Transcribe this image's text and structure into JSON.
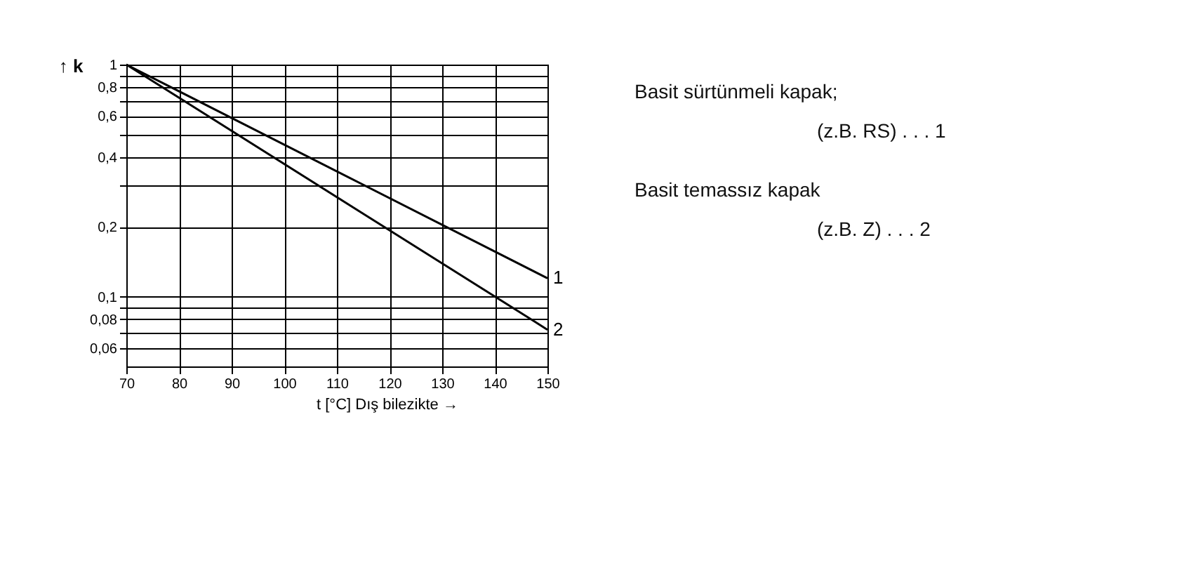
{
  "chart_data": {
    "type": "line",
    "x": [
      70,
      150
    ],
    "series": [
      {
        "name": "1",
        "color": "#000000",
        "values": [
          1,
          0.12
        ]
      },
      {
        "name": "2",
        "color": "#000000",
        "values": [
          1,
          0.072
        ]
      }
    ],
    "xlim": [
      70,
      150
    ],
    "xticks": [
      70,
      80,
      90,
      100,
      110,
      120,
      130,
      140,
      150
    ],
    "ylim": [
      0.05,
      1
    ],
    "log": true,
    "yticks": [
      {
        "value": 1,
        "label": "1"
      },
      {
        "value": 0.9,
        "label": null
      },
      {
        "value": 0.8,
        "label": "0,8"
      },
      {
        "value": 0.7,
        "label": null
      },
      {
        "value": 0.6,
        "label": "0,6"
      },
      {
        "value": 0.5,
        "label": null
      },
      {
        "value": 0.4,
        "label": "0,4"
      },
      {
        "value": 0.3,
        "label": null
      },
      {
        "value": 0.2,
        "label": "0,2"
      },
      {
        "value": 0.1,
        "label": "0,1"
      },
      {
        "value": 0.09,
        "label": null
      },
      {
        "value": 0.08,
        "label": "0,08"
      },
      {
        "value": 0.07,
        "label": null
      },
      {
        "value": 0.06,
        "label": "0,06"
      }
    ],
    "xlabel": "t [°C] Dış bilezikte →",
    "ylabel": "↑ k",
    "grid": true,
    "legend": false,
    "marker": "none",
    "line_style": "solid",
    "annotations": [
      "Basit sürtünmeli kapak;",
      "(z.B. RS) . . . 1",
      "Basit temassız kapak",
      "(z.B. Z) . . . 2"
    ]
  }
}
